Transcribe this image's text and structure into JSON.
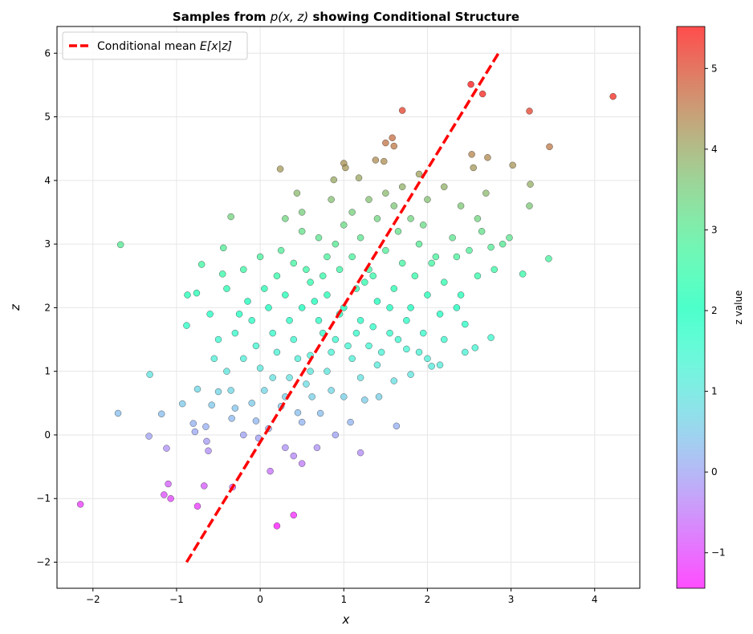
{
  "chart_data": {
    "type": "scatter",
    "title_prefix": "Samples from ",
    "title_math": "p(x, z)",
    "title_suffix": " showing Conditional Structure",
    "xlabel": "x",
    "ylabel": "z",
    "xlim": [
      -2.43,
      4.54
    ],
    "ylim": [
      -2.41,
      6.42
    ],
    "xticks": [
      -2,
      -1,
      0,
      1,
      2,
      3,
      4
    ],
    "yticks": [
      -2,
      -1,
      0,
      1,
      2,
      3,
      4,
      5,
      6
    ],
    "grid": true,
    "legend": {
      "label_text": "Conditional mean ",
      "label_math": "E[x|z]",
      "placement": "top-left"
    },
    "colorbar": {
      "label": "z value",
      "range": [
        -1.44,
        5.52
      ],
      "ticks": [
        -1,
        0,
        1,
        2,
        3,
        4,
        5
      ],
      "colormap": "rainbow"
    },
    "line": {
      "name": "Conditional mean",
      "x": [
        -0.88,
        2.85
      ],
      "z": [
        -2,
        6
      ],
      "color": "#ff0000"
    },
    "points": [
      [
        -2.15,
        -1.09
      ],
      [
        -1.67,
        2.99
      ],
      [
        -1.7,
        0.34
      ],
      [
        -1.32,
        0.95
      ],
      [
        -1.33,
        -0.02
      ],
      [
        -1.12,
        -0.21
      ],
      [
        -1.1,
        -0.77
      ],
      [
        -1.15,
        -0.94
      ],
      [
        -1.07,
        -1.0
      ],
      [
        -0.75,
        -1.12
      ],
      [
        -0.67,
        -0.8
      ],
      [
        -0.33,
        -0.82
      ],
      [
        0.2,
        -1.43
      ],
      [
        0.4,
        -1.26
      ],
      [
        0.12,
        -0.57
      ],
      [
        0.4,
        -0.33
      ],
      [
        0.5,
        -0.45
      ],
      [
        0.3,
        -0.2
      ],
      [
        0.68,
        -0.2
      ],
      [
        0.9,
        0.0
      ],
      [
        1.2,
        -0.28
      ],
      [
        -0.35,
        3.43
      ],
      [
        0.24,
        4.18
      ],
      [
        0.44,
        3.8
      ],
      [
        0.85,
        3.7
      ],
      [
        0.88,
        4.01
      ],
      [
        1.0,
        4.27
      ],
      [
        1.02,
        4.2
      ],
      [
        1.18,
        4.04
      ],
      [
        1.38,
        4.32
      ],
      [
        1.48,
        4.3
      ],
      [
        1.5,
        4.59
      ],
      [
        1.58,
        4.67
      ],
      [
        1.6,
        4.54
      ],
      [
        1.7,
        5.1
      ],
      [
        2.52,
        5.51
      ],
      [
        2.66,
        5.36
      ],
      [
        3.22,
        5.09
      ],
      [
        4.22,
        5.32
      ],
      [
        3.46,
        4.53
      ],
      [
        3.02,
        4.24
      ],
      [
        2.72,
        4.36
      ],
      [
        2.53,
        4.41
      ],
      [
        2.55,
        4.2
      ],
      [
        3.23,
        3.94
      ],
      [
        3.22,
        3.6
      ],
      [
        3.45,
        2.77
      ],
      [
        3.14,
        2.53
      ],
      [
        2.98,
        3.1
      ],
      [
        2.76,
        2.95
      ],
      [
        2.76,
        1.53
      ],
      [
        2.57,
        1.37
      ],
      [
        2.45,
        1.74
      ],
      [
        1.63,
        0.14
      ],
      [
        1.42,
        0.6
      ],
      [
        1.08,
        0.2
      ],
      [
        0.72,
        0.34
      ],
      [
        0.45,
        0.35
      ],
      [
        -0.05,
        0.22
      ],
      [
        -0.3,
        0.42
      ],
      [
        -0.58,
        0.47
      ],
      [
        -0.93,
        0.49
      ],
      [
        -0.8,
        0.18
      ],
      [
        -0.65,
        0.13
      ],
      [
        -0.75,
        0.72
      ],
      [
        -0.87,
        2.2
      ],
      [
        -0.76,
        2.23
      ],
      [
        -0.7,
        2.68
      ],
      [
        -0.44,
        2.94
      ],
      [
        -0.45,
        2.53
      ],
      [
        -0.88,
        1.72
      ],
      [
        -1.18,
        0.33
      ],
      [
        -0.62,
        -0.25
      ],
      [
        -0.64,
        -0.1
      ],
      [
        -0.78,
        0.05
      ],
      [
        -0.34,
        0.26
      ],
      [
        -0.2,
        0.0
      ],
      [
        -0.02,
        -0.05
      ],
      [
        0.1,
        0.1
      ],
      [
        0.25,
        0.45
      ],
      [
        0.5,
        0.2
      ],
      [
        0.62,
        0.6
      ],
      [
        0.35,
        0.9
      ],
      [
        0.05,
        0.7
      ],
      [
        -0.1,
        0.5
      ],
      [
        -0.5,
        0.68
      ],
      [
        -0.55,
        1.2
      ],
      [
        -0.4,
        1.0
      ],
      [
        -0.2,
        1.2
      ],
      [
        0.0,
        1.05
      ],
      [
        0.2,
        1.3
      ],
      [
        0.4,
        1.5
      ],
      [
        0.6,
        1.25
      ],
      [
        0.8,
        1.0
      ],
      [
        1.0,
        0.6
      ],
      [
        1.2,
        0.9
      ],
      [
        1.4,
        1.1
      ],
      [
        1.6,
        0.85
      ],
      [
        1.8,
        0.95
      ],
      [
        2.0,
        1.2
      ],
      [
        2.2,
        1.5
      ],
      [
        2.05,
        1.08
      ],
      [
        1.75,
        1.35
      ],
      [
        1.55,
        1.6
      ],
      [
        1.3,
        1.4
      ],
      [
        1.1,
        1.2
      ],
      [
        0.9,
        1.5
      ],
      [
        0.7,
        1.8
      ],
      [
        0.5,
        2.0
      ],
      [
        0.3,
        2.2
      ],
      [
        0.1,
        2.0
      ],
      [
        -0.1,
        1.8
      ],
      [
        -0.3,
        1.6
      ],
      [
        -0.5,
        1.5
      ],
      [
        -0.6,
        1.9
      ],
      [
        -0.4,
        2.3
      ],
      [
        -0.2,
        2.6
      ],
      [
        0.0,
        2.8
      ],
      [
        0.2,
        2.5
      ],
      [
        0.4,
        2.7
      ],
      [
        0.6,
        2.4
      ],
      [
        0.8,
        2.2
      ],
      [
        1.0,
        2.0
      ],
      [
        1.2,
        1.8
      ],
      [
        1.4,
        2.1
      ],
      [
        1.6,
        2.3
      ],
      [
        1.8,
        2.0
      ],
      [
        2.0,
        2.2
      ],
      [
        2.2,
        2.4
      ],
      [
        2.4,
        2.2
      ],
      [
        2.6,
        2.5
      ],
      [
        2.8,
        2.6
      ],
      [
        2.5,
        2.9
      ],
      [
        2.3,
        3.1
      ],
      [
        2.1,
        2.8
      ],
      [
        1.9,
        3.0
      ],
      [
        1.7,
        2.7
      ],
      [
        1.5,
        2.9
      ],
      [
        1.3,
        2.6
      ],
      [
        1.1,
        2.8
      ],
      [
        0.9,
        3.0
      ],
      [
        0.7,
        3.1
      ],
      [
        0.5,
        3.2
      ],
      [
        0.3,
        3.4
      ],
      [
        0.5,
        3.5
      ],
      [
        0.8,
        2.8
      ],
      [
        1.0,
        3.3
      ],
      [
        1.2,
        3.1
      ],
      [
        1.4,
        3.4
      ],
      [
        1.6,
        3.6
      ],
      [
        1.8,
        3.4
      ],
      [
        2.0,
        3.7
      ],
      [
        2.2,
        3.9
      ],
      [
        2.4,
        3.6
      ],
      [
        2.6,
        3.4
      ],
      [
        2.7,
        3.8
      ],
      [
        1.9,
        4.1
      ],
      [
        1.7,
        3.9
      ],
      [
        1.5,
        3.8
      ],
      [
        1.3,
        3.7
      ],
      [
        1.1,
        3.5
      ],
      [
        0.6,
        1.0
      ],
      [
        0.3,
        0.6
      ],
      [
        0.15,
        1.6
      ],
      [
        -0.05,
        1.4
      ],
      [
        0.45,
        1.2
      ],
      [
        0.75,
        1.6
      ],
      [
        0.95,
        1.9
      ],
      [
        1.15,
        2.3
      ],
      [
        1.35,
        2.5
      ],
      [
        1.55,
        2.0
      ],
      [
        1.75,
        1.8
      ],
      [
        1.95,
        1.6
      ],
      [
        2.15,
        1.9
      ],
      [
        2.35,
        2.0
      ],
      [
        1.05,
        1.4
      ],
      [
        0.85,
        1.3
      ],
      [
        0.65,
        2.1
      ],
      [
        0.55,
        2.6
      ],
      [
        0.25,
        2.9
      ],
      [
        0.05,
        2.3
      ],
      [
        -0.15,
        2.1
      ],
      [
        -0.25,
        1.9
      ],
      [
        1.45,
        1.3
      ],
      [
        1.65,
        1.5
      ],
      [
        1.85,
        2.5
      ],
      [
        2.05,
        2.7
      ],
      [
        1.25,
        2.4
      ],
      [
        0.95,
        2.6
      ],
      [
        0.75,
        2.5
      ],
      [
        1.35,
        1.7
      ],
      [
        1.15,
        1.6
      ],
      [
        0.35,
        1.8
      ],
      [
        0.15,
        0.9
      ],
      [
        -0.35,
        0.7
      ],
      [
        0.85,
        0.7
      ],
      [
        1.25,
        0.55
      ],
      [
        0.55,
        0.8
      ],
      [
        2.65,
        3.2
      ],
      [
        2.9,
        3.0
      ],
      [
        2.35,
        2.8
      ],
      [
        1.95,
        3.3
      ],
      [
        1.65,
        3.2
      ],
      [
        2.45,
        1.3
      ],
      [
        2.15,
        1.1
      ],
      [
        1.9,
        1.3
      ]
    ]
  }
}
